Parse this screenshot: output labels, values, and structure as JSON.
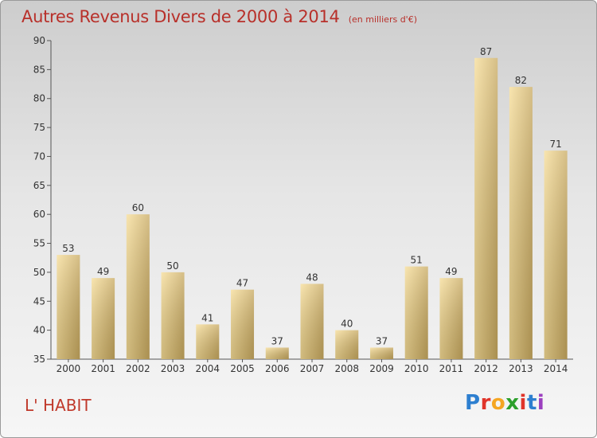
{
  "title": "Autres Revenus Divers de 2000 à 2014",
  "subtitle": "(en milliers d'€)",
  "location": "L' HABIT",
  "logo": {
    "text": "Proxiti",
    "colors": [
      "#2d7fd0",
      "#e0342a",
      "#f5a623",
      "#2ca02c",
      "#e0342a",
      "#2d7fd0",
      "#9b3fbf"
    ]
  },
  "colors": {
    "title": "#b8302a",
    "bar_light": "#f6dc95",
    "bar_dark": "#c8a95f",
    "axis": "#555555"
  },
  "chart_data": {
    "type": "bar",
    "categories": [
      "2000",
      "2001",
      "2002",
      "2003",
      "2004",
      "2005",
      "2006",
      "2007",
      "2008",
      "2009",
      "2010",
      "2011",
      "2012",
      "2013",
      "2014"
    ],
    "values": [
      53,
      49,
      60,
      50,
      41,
      47,
      37,
      48,
      40,
      37,
      51,
      49,
      87,
      82,
      71
    ],
    "ylim": [
      35,
      90
    ],
    "yticks": [
      35,
      40,
      45,
      50,
      55,
      60,
      65,
      70,
      75,
      80,
      85,
      90
    ],
    "grid": false,
    "legend": "none"
  }
}
